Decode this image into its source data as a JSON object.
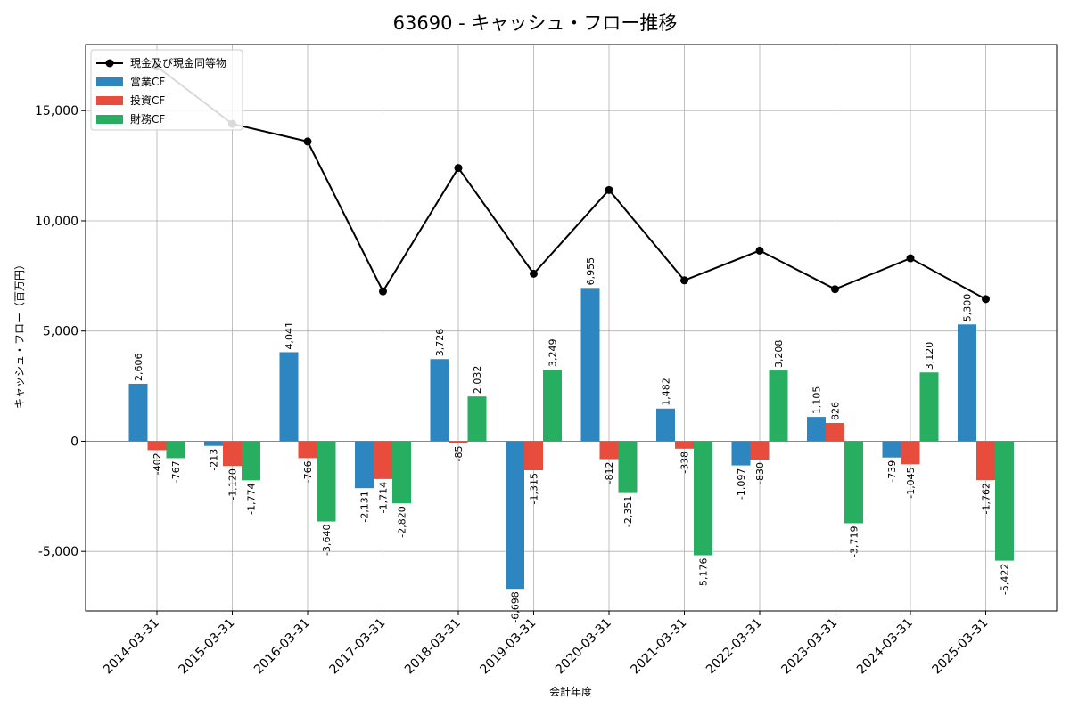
{
  "chart_data": {
    "type": "bar",
    "title": "63690 - キャッシュ・フロー推移",
    "xlabel": "会計年度",
    "ylabel": "キャッシュ・フロー（百万円）",
    "ylim": [
      -7700,
      18000
    ],
    "yticks": [
      -5000,
      0,
      5000,
      10000,
      15000
    ],
    "ytick_labels": [
      "-5,000",
      "0",
      "5,000",
      "10,000",
      "15,000"
    ],
    "grid": true,
    "legend_position": "top-left",
    "categories": [
      "2014-03-31",
      "2015-03-31",
      "2016-03-31",
      "2017-03-31",
      "2018-03-31",
      "2019-03-31",
      "2020-03-31",
      "2021-03-31",
      "2022-03-31",
      "2023-03-31",
      "2024-03-31",
      "2025-03-31"
    ],
    "series": [
      {
        "name": "営業CF",
        "type": "bar",
        "color": "#2e86c1",
        "values": [
          2606,
          -213,
          4041,
          -2131,
          3726,
          -6698,
          6955,
          1482,
          -1097,
          1105,
          -739,
          5300
        ],
        "labels": [
          "2,606",
          "-213",
          "4,041",
          "-2,131",
          "3,726",
          "-6,698",
          "6,955",
          "1,482",
          "-1,097",
          "1,105",
          "-739",
          "5,300"
        ]
      },
      {
        "name": "投資CF",
        "type": "bar",
        "color": "#e74c3c",
        "values": [
          -402,
          -1120,
          -766,
          -1714,
          -85,
          -1315,
          -812,
          -338,
          -830,
          826,
          -1045,
          -1762
        ],
        "labels": [
          "-402",
          "-1,120",
          "-766",
          "-1,714",
          "-85",
          "-1,315",
          "-812",
          "-338",
          "-830",
          "826",
          "-1,045",
          "-1,762"
        ]
      },
      {
        "name": "財務CF",
        "type": "bar",
        "color": "#27ae60",
        "values": [
          -767,
          -1774,
          -3640,
          -2820,
          2032,
          3249,
          -2351,
          -5176,
          3208,
          -3719,
          3120,
          -5422
        ],
        "labels": [
          "-767",
          "-1,774",
          "-3,640",
          "-2,820",
          "2,032",
          "3,249",
          "-2,351",
          "-5,176",
          "3,208",
          "-3,719",
          "3,120",
          "-5,422"
        ]
      },
      {
        "name": "現金及び現金同等物",
        "type": "line",
        "color": "#000000",
        "values": [
          17000,
          14400,
          13600,
          6800,
          12400,
          7600,
          11400,
          7300,
          8650,
          6900,
          8300,
          6450
        ]
      }
    ]
  }
}
